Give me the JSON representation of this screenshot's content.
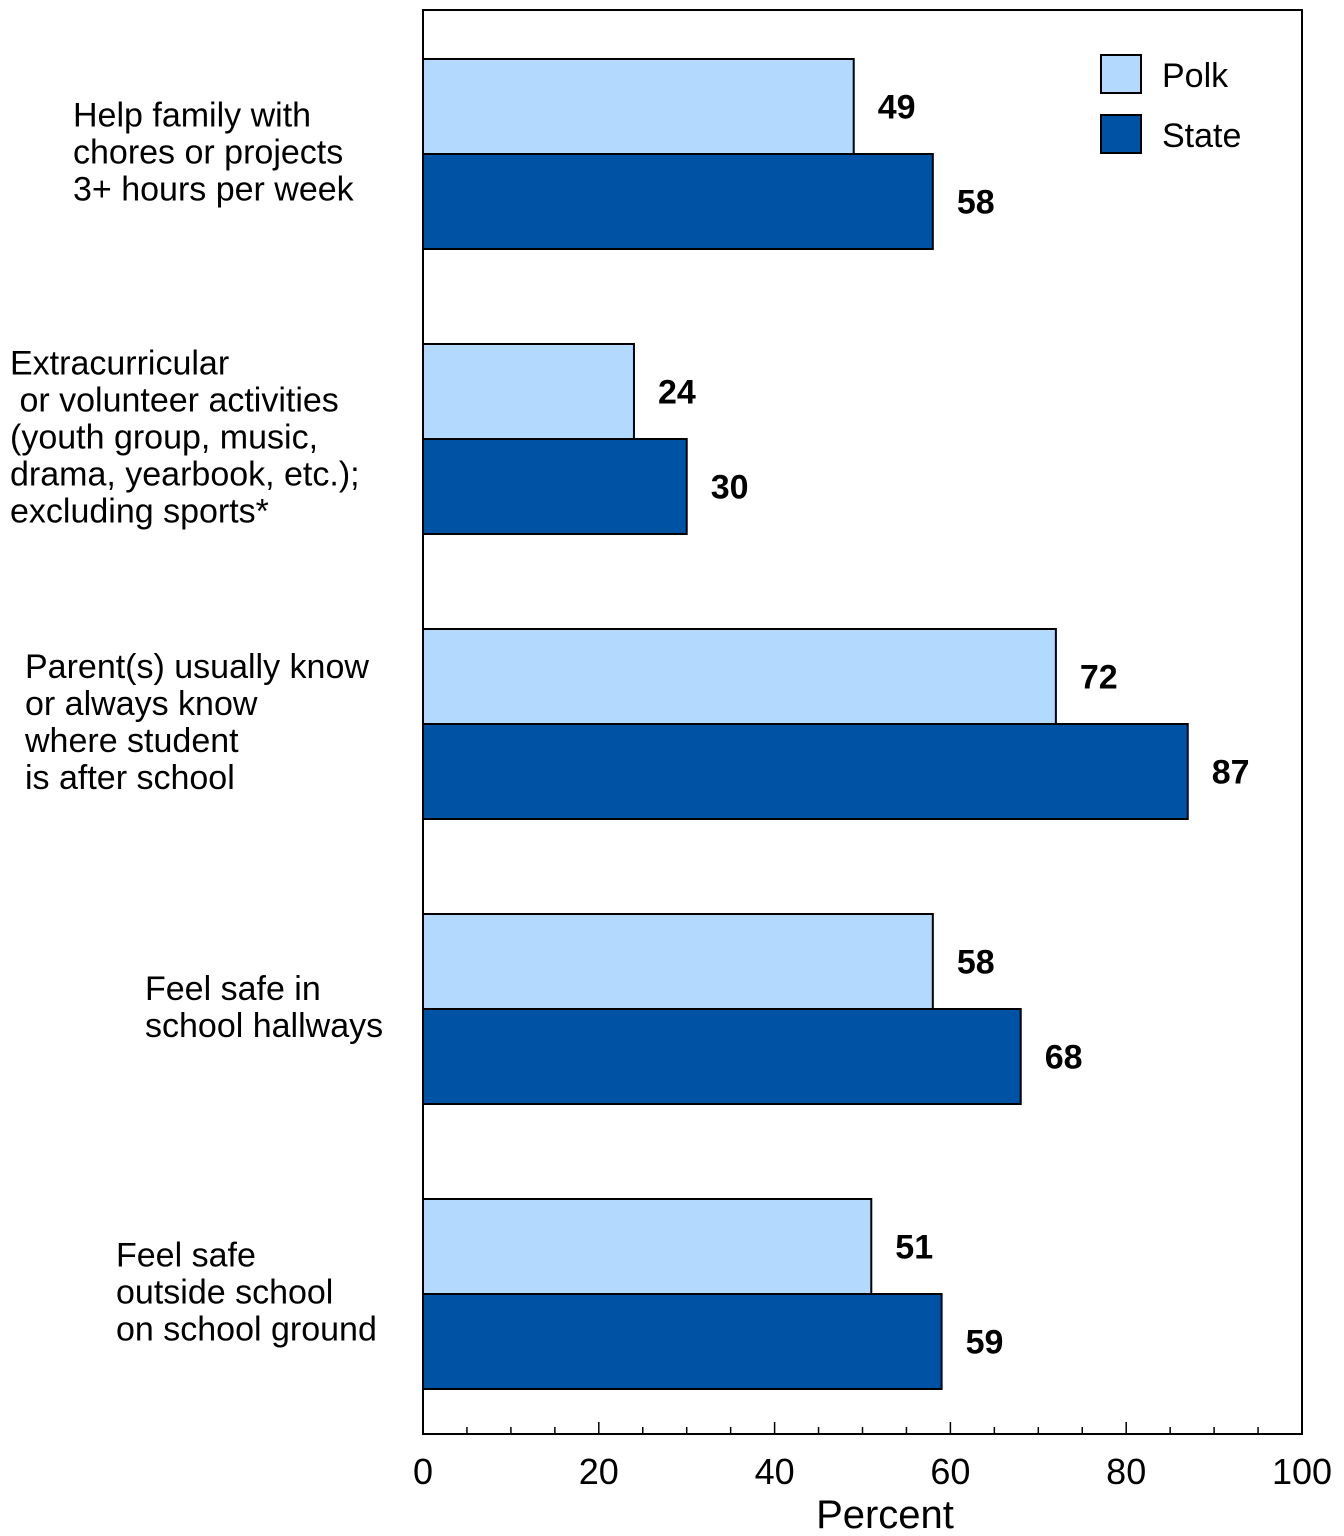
{
  "chart_data": {
    "type": "bar",
    "orientation": "horizontal",
    "categories": [
      [
        "Help family with",
        "chores or projects",
        "3+ hours per week"
      ],
      [
        "Extracurricular",
        " or volunteer activities",
        "(youth group, music,",
        "drama, yearbook, etc.);",
        "excluding sports*"
      ],
      [
        "Parent(s) usually know",
        "or always know",
        "where student",
        "is after school"
      ],
      [
        "Feel safe in",
        "school hallways"
      ],
      [
        "Feel safe",
        "outside school",
        "on school ground"
      ]
    ],
    "series": [
      {
        "name": "Polk",
        "color": "#b3d9ff",
        "values": [
          49,
          24,
          72,
          58,
          51
        ]
      },
      {
        "name": "State",
        "color": "#0052a5",
        "values": [
          58,
          30,
          87,
          68,
          59
        ]
      }
    ],
    "xlabel": "Percent",
    "ylabel": "",
    "title": "",
    "xlim": [
      0,
      100
    ],
    "xticks": [
      0,
      20,
      40,
      60,
      80,
      100
    ],
    "grid": false,
    "legend_position": "top-right"
  }
}
